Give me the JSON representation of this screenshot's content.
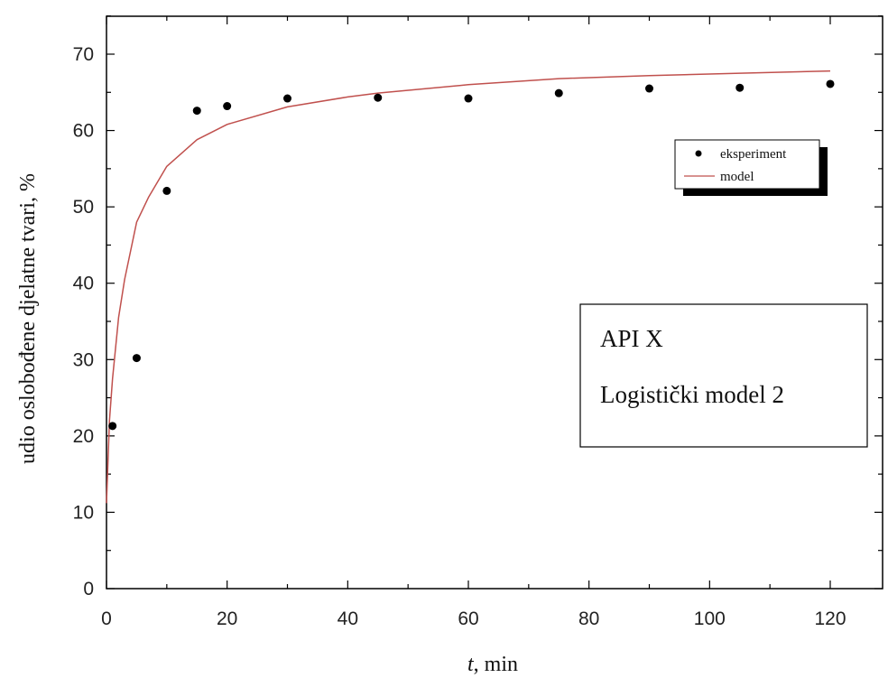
{
  "chart_data": {
    "type": "scatter",
    "xlabel_italic": "t",
    "xlabel_rest": ", min",
    "ylabel": "udio oslobođene djelatne tvari, %",
    "xlim": [
      0,
      130
    ],
    "ylim": [
      0,
      75
    ],
    "xticks": [
      0,
      20,
      40,
      60,
      80,
      100,
      120
    ],
    "yticks": [
      0,
      10,
      20,
      30,
      40,
      50,
      60,
      70
    ],
    "grid": false,
    "legend_position": "upper-right",
    "series": [
      {
        "name": "eksperiment",
        "kind": "points",
        "color": "#000000",
        "x": [
          1,
          5,
          10,
          15,
          20,
          30,
          45,
          60,
          75,
          90,
          105,
          120
        ],
        "y": [
          21.3,
          30.2,
          52.1,
          62.6,
          63.2,
          64.2,
          64.3,
          64.2,
          64.9,
          65.5,
          65.6,
          66.1
        ]
      },
      {
        "name": "model",
        "kind": "line",
        "color": "#c0504d",
        "x": [
          0,
          0.5,
          1,
          2,
          3,
          5,
          7,
          10,
          15,
          20,
          30,
          40,
          45,
          60,
          75,
          90,
          105,
          120
        ],
        "y": [
          11.2,
          22.0,
          27.5,
          35.5,
          40.5,
          48.0,
          51.3,
          55.3,
          58.8,
          60.8,
          63.1,
          64.4,
          64.9,
          66.0,
          66.8,
          67.2,
          67.5,
          67.8
        ]
      }
    ],
    "annotations": [
      "API X",
      "Logistički model 2"
    ]
  }
}
